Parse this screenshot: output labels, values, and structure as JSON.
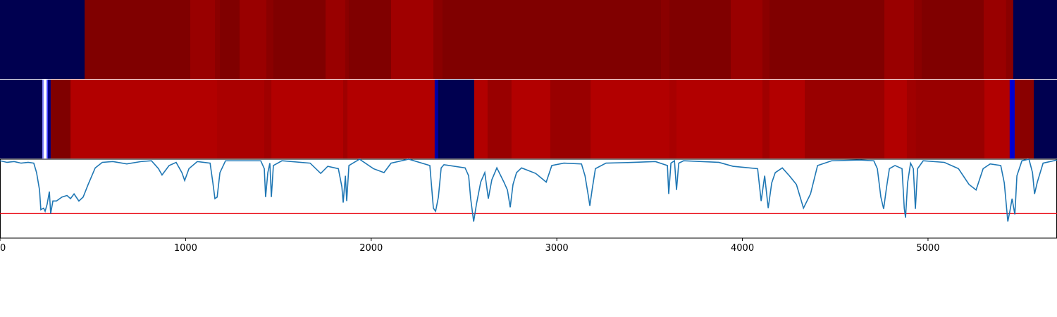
{
  "chart_data": [
    {
      "type": "heatmap",
      "xlim": [
        0,
        5695
      ],
      "segments": [
        {
          "start": 0,
          "end": 456,
          "color": "#000050"
        },
        {
          "start": 456,
          "end": 1025,
          "color": "#800000"
        },
        {
          "start": 1025,
          "end": 1158,
          "color": "#990000"
        },
        {
          "start": 1158,
          "end": 1185,
          "color": "#8a0000"
        },
        {
          "start": 1185,
          "end": 1291,
          "color": "#800000"
        },
        {
          "start": 1291,
          "end": 1435,
          "color": "#990000"
        },
        {
          "start": 1435,
          "end": 1473,
          "color": "#8a0000"
        },
        {
          "start": 1473,
          "end": 1754,
          "color": "#800000"
        },
        {
          "start": 1754,
          "end": 1860,
          "color": "#990000"
        },
        {
          "start": 1860,
          "end": 1879,
          "color": "#8a0000"
        },
        {
          "start": 1879,
          "end": 2107,
          "color": "#800000"
        },
        {
          "start": 2107,
          "end": 2335,
          "color": "#a00000"
        },
        {
          "start": 2335,
          "end": 2384,
          "color": "#8a0000"
        },
        {
          "start": 2384,
          "end": 3561,
          "color": "#800000"
        },
        {
          "start": 3561,
          "end": 3607,
          "color": "#8a0000"
        },
        {
          "start": 3607,
          "end": 3937,
          "color": "#800000"
        },
        {
          "start": 3937,
          "end": 4108,
          "color": "#990000"
        },
        {
          "start": 4108,
          "end": 4146,
          "color": "#8a0000"
        },
        {
          "start": 4146,
          "end": 4765,
          "color": "#800000"
        },
        {
          "start": 4765,
          "end": 4924,
          "color": "#990000"
        },
        {
          "start": 4924,
          "end": 4966,
          "color": "#8a0000"
        },
        {
          "start": 4966,
          "end": 5300,
          "color": "#800000"
        },
        {
          "start": 5300,
          "end": 5421,
          "color": "#990000"
        },
        {
          "start": 5421,
          "end": 5459,
          "color": "#8a0000"
        },
        {
          "start": 5459,
          "end": 5695,
          "color": "#000050"
        }
      ]
    },
    {
      "type": "heatmap",
      "xlim": [
        0,
        5695
      ],
      "segments": [
        {
          "start": 0,
          "end": 228,
          "color": "#000050"
        },
        {
          "start": 228,
          "end": 236,
          "color": "#8888ff"
        },
        {
          "start": 236,
          "end": 251,
          "color": "#ffffff"
        },
        {
          "start": 251,
          "end": 258,
          "color": "#4444ff"
        },
        {
          "start": 258,
          "end": 273,
          "color": "#000080"
        },
        {
          "start": 273,
          "end": 380,
          "color": "#800000"
        },
        {
          "start": 380,
          "end": 1169,
          "color": "#b20000"
        },
        {
          "start": 1169,
          "end": 1424,
          "color": "#aa0000"
        },
        {
          "start": 1424,
          "end": 1462,
          "color": "#a00000"
        },
        {
          "start": 1462,
          "end": 1849,
          "color": "#b20000"
        },
        {
          "start": 1849,
          "end": 1872,
          "color": "#a00000"
        },
        {
          "start": 1872,
          "end": 2342,
          "color": "#b20000"
        },
        {
          "start": 2342,
          "end": 2361,
          "color": "#0000a0"
        },
        {
          "start": 2361,
          "end": 2555,
          "color": "#000050"
        },
        {
          "start": 2555,
          "end": 2627,
          "color": "#b20000"
        },
        {
          "start": 2627,
          "end": 2756,
          "color": "#990000"
        },
        {
          "start": 2756,
          "end": 2965,
          "color": "#b20000"
        },
        {
          "start": 2965,
          "end": 3182,
          "color": "#990000"
        },
        {
          "start": 3182,
          "end": 3607,
          "color": "#b20000"
        },
        {
          "start": 3607,
          "end": 3645,
          "color": "#a80000"
        },
        {
          "start": 3645,
          "end": 4108,
          "color": "#b20000"
        },
        {
          "start": 4108,
          "end": 4146,
          "color": "#a00000"
        },
        {
          "start": 4146,
          "end": 4336,
          "color": "#b20000"
        },
        {
          "start": 4336,
          "end": 4765,
          "color": "#990000"
        },
        {
          "start": 4765,
          "end": 4886,
          "color": "#b20000"
        },
        {
          "start": 4886,
          "end": 4935,
          "color": "#a00000"
        },
        {
          "start": 4935,
          "end": 5304,
          "color": "#990000"
        },
        {
          "start": 5304,
          "end": 5440,
          "color": "#b20000"
        },
        {
          "start": 5440,
          "end": 5467,
          "color": "#0000d0"
        },
        {
          "start": 5467,
          "end": 5570,
          "color": "#8a0000"
        },
        {
          "start": 5570,
          "end": 5695,
          "color": "#000050"
        }
      ]
    },
    {
      "type": "line",
      "xlim": [
        0,
        5695
      ],
      "ylim": [
        0,
        1
      ],
      "xticks": [
        0,
        1000,
        2000,
        3000,
        4000,
        5000
      ],
      "hline": {
        "value": 0.31,
        "color": "#e8000b"
      },
      "x": [
        0,
        38,
        76,
        114,
        152,
        182,
        197,
        213,
        220,
        235,
        243,
        254,
        266,
        273,
        285,
        304,
        334,
        361,
        380,
        399,
        425,
        448,
        475,
        513,
        551,
        608,
        683,
        759,
        816,
        854,
        873,
        911,
        949,
        980,
        995,
        1018,
        1063,
        1132,
        1147,
        1158,
        1170,
        1185,
        1215,
        1310,
        1405,
        1424,
        1431,
        1443,
        1454,
        1462,
        1473,
        1519,
        1671,
        1728,
        1766,
        1823,
        1842,
        1849,
        1861,
        1868,
        1880,
        1937,
        2012,
        2069,
        2107,
        2202,
        2316,
        2335,
        2347,
        2362,
        2377,
        2392,
        2506,
        2525,
        2536,
        2552,
        2567,
        2590,
        2612,
        2631,
        2650,
        2677,
        2715,
        2734,
        2749,
        2764,
        2783,
        2810,
        2886,
        2943,
        2973,
        3038,
        3133,
        3152,
        3171,
        3178,
        3190,
        3208,
        3265,
        3417,
        3531,
        3596,
        3603,
        3615,
        3634,
        3645,
        3657,
        3683,
        3873,
        3949,
        4082,
        4101,
        4120,
        4139,
        4158,
        4177,
        4215,
        4253,
        4291,
        4329,
        4367,
        4405,
        4481,
        4632,
        4708,
        4727,
        4746,
        4761,
        4777,
        4792,
        4822,
        4860,
        4872,
        4879,
        4890,
        4906,
        4921,
        4932,
        4944,
        4974,
        5088,
        5164,
        5221,
        5259,
        5297,
        5335,
        5392,
        5411,
        5430,
        5441,
        5453,
        5468,
        5479,
        5506,
        5544,
        5563,
        5574,
        5589,
        5620,
        5695
      ],
      "series": [
        {
          "color": "#1f77b4",
          "values": [
            0.98,
            0.96,
            0.97,
            0.95,
            0.96,
            0.95,
            0.83,
            0.61,
            0.36,
            0.38,
            0.34,
            0.43,
            0.59,
            0.31,
            0.47,
            0.47,
            0.52,
            0.54,
            0.5,
            0.56,
            0.47,
            0.52,
            0.68,
            0.89,
            0.96,
            0.97,
            0.94,
            0.97,
            0.98,
            0.88,
            0.8,
            0.92,
            0.96,
            0.83,
            0.73,
            0.88,
            0.97,
            0.95,
            0.7,
            0.5,
            0.52,
            0.83,
            0.98,
            0.98,
            0.98,
            0.88,
            0.52,
            0.83,
            0.95,
            0.52,
            0.92,
            0.98,
            0.95,
            0.82,
            0.91,
            0.88,
            0.65,
            0.45,
            0.79,
            0.47,
            0.92,
            1,
            0.88,
            0.83,
            0.95,
            1,
            0.92,
            0.38,
            0.34,
            0.52,
            0.89,
            0.93,
            0.89,
            0.79,
            0.5,
            0.21,
            0.43,
            0.71,
            0.83,
            0.5,
            0.74,
            0.89,
            0.71,
            0.61,
            0.39,
            0.68,
            0.83,
            0.89,
            0.82,
            0.71,
            0.92,
            0.95,
            0.94,
            0.79,
            0.52,
            0.41,
            0.61,
            0.88,
            0.95,
            0.96,
            0.97,
            0.92,
            0.56,
            0.95,
            0.98,
            0.61,
            0.95,
            0.98,
            0.96,
            0.91,
            0.88,
            0.47,
            0.79,
            0.38,
            0.7,
            0.83,
            0.89,
            0.79,
            0.68,
            0.38,
            0.56,
            0.92,
            0.98,
            0.99,
            0.98,
            0.88,
            0.52,
            0.37,
            0.65,
            0.88,
            0.92,
            0.88,
            0.38,
            0.26,
            0.7,
            0.95,
            0.88,
            0.37,
            0.88,
            0.98,
            0.96,
            0.88,
            0.68,
            0.61,
            0.88,
            0.94,
            0.92,
            0.7,
            0.21,
            0.34,
            0.5,
            0.3,
            0.79,
            0.98,
            1,
            0.83,
            0.56,
            0.71,
            0.95,
            0.99
          ]
        }
      ]
    }
  ]
}
